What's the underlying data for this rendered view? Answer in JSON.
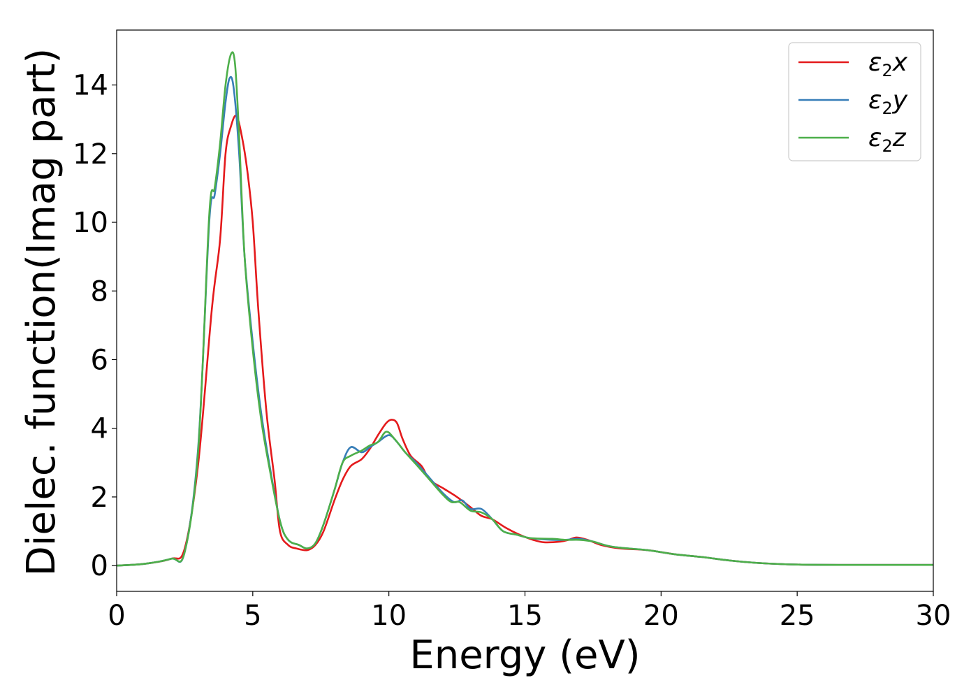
{
  "chart_data": {
    "type": "line",
    "title": "",
    "xlabel": "Energy (eV)",
    "ylabel": "Dielec. function(Imag part)",
    "xlim": [
      0,
      30
    ],
    "ylim": [
      -0.75,
      15.6
    ],
    "xticks": [
      0,
      5,
      10,
      15,
      20,
      25,
      30
    ],
    "xtick_labels": [
      "0",
      "5",
      "10",
      "15",
      "20",
      "25",
      "30"
    ],
    "yticks": [
      0,
      2,
      4,
      6,
      8,
      10,
      12,
      14
    ],
    "ytick_labels": [
      "0",
      "2",
      "4",
      "6",
      "8",
      "10",
      "12",
      "14"
    ],
    "grid": false,
    "legend_position": "top-right",
    "series": [
      {
        "name": "ε2x",
        "label_base": "ε",
        "label_sub": "2",
        "label_var": "x",
        "color": "#e41a1c",
        "points": [
          [
            0,
            0
          ],
          [
            1,
            0.05
          ],
          [
            2,
            0.2
          ],
          [
            2.5,
            0.5
          ],
          [
            3,
            3.0
          ],
          [
            3.5,
            7.5
          ],
          [
            3.8,
            9.5
          ],
          [
            4.0,
            12.0
          ],
          [
            4.2,
            12.8
          ],
          [
            4.4,
            13.1
          ],
          [
            4.6,
            12.5
          ],
          [
            4.8,
            11.5
          ],
          [
            5.0,
            10.0
          ],
          [
            5.2,
            7.5
          ],
          [
            5.5,
            4.5
          ],
          [
            5.8,
            2.5
          ],
          [
            6.0,
            1.0
          ],
          [
            6.3,
            0.6
          ],
          [
            6.6,
            0.5
          ],
          [
            7.0,
            0.45
          ],
          [
            7.3,
            0.6
          ],
          [
            7.6,
            1.0
          ],
          [
            8.0,
            1.9
          ],
          [
            8.3,
            2.5
          ],
          [
            8.6,
            2.9
          ],
          [
            9.0,
            3.1
          ],
          [
            9.3,
            3.4
          ],
          [
            9.6,
            3.8
          ],
          [
            9.9,
            4.15
          ],
          [
            10.1,
            4.25
          ],
          [
            10.3,
            4.15
          ],
          [
            10.5,
            3.7
          ],
          [
            10.8,
            3.2
          ],
          [
            11.2,
            2.9
          ],
          [
            11.5,
            2.5
          ],
          [
            12.0,
            2.25
          ],
          [
            12.5,
            2.0
          ],
          [
            13.0,
            1.7
          ],
          [
            13.4,
            1.45
          ],
          [
            13.8,
            1.35
          ],
          [
            14.3,
            1.1
          ],
          [
            14.8,
            0.9
          ],
          [
            15.3,
            0.75
          ],
          [
            15.7,
            0.68
          ],
          [
            16.3,
            0.7
          ],
          [
            16.6,
            0.75
          ],
          [
            16.9,
            0.82
          ],
          [
            17.3,
            0.75
          ],
          [
            17.8,
            0.6
          ],
          [
            18.5,
            0.5
          ],
          [
            19.5,
            0.45
          ],
          [
            20.5,
            0.33
          ],
          [
            21.5,
            0.25
          ],
          [
            22.5,
            0.15
          ],
          [
            23.5,
            0.08
          ],
          [
            25,
            0.03
          ],
          [
            27,
            0.02
          ],
          [
            30,
            0.02
          ]
        ]
      },
      {
        "name": "ε2y",
        "label_base": "ε",
        "label_sub": "2",
        "label_var": "y",
        "color": "#377eb8",
        "points": [
          [
            0,
            0
          ],
          [
            1,
            0.05
          ],
          [
            2,
            0.2
          ],
          [
            2.5,
            0.4
          ],
          [
            3,
            3.5
          ],
          [
            3.4,
            10.0
          ],
          [
            3.6,
            10.8
          ],
          [
            3.8,
            12.0
          ],
          [
            4.0,
            13.5
          ],
          [
            4.15,
            14.2
          ],
          [
            4.3,
            13.9
          ],
          [
            4.5,
            12.0
          ],
          [
            4.7,
            9.0
          ],
          [
            5.0,
            6.5
          ],
          [
            5.3,
            4.5
          ],
          [
            5.6,
            3.0
          ],
          [
            6.0,
            1.3
          ],
          [
            6.3,
            0.75
          ],
          [
            6.7,
            0.6
          ],
          [
            7.0,
            0.5
          ],
          [
            7.3,
            0.65
          ],
          [
            7.6,
            1.2
          ],
          [
            8.0,
            2.2
          ],
          [
            8.3,
            3.0
          ],
          [
            8.6,
            3.45
          ],
          [
            9.0,
            3.3
          ],
          [
            9.3,
            3.45
          ],
          [
            9.6,
            3.6
          ],
          [
            10.0,
            3.8
          ],
          [
            10.3,
            3.6
          ],
          [
            10.6,
            3.3
          ],
          [
            11.0,
            3.0
          ],
          [
            11.5,
            2.55
          ],
          [
            12.0,
            2.1
          ],
          [
            12.4,
            1.85
          ],
          [
            12.7,
            1.9
          ],
          [
            13.0,
            1.65
          ],
          [
            13.4,
            1.65
          ],
          [
            13.8,
            1.35
          ],
          [
            14.2,
            1.0
          ],
          [
            14.7,
            0.9
          ],
          [
            15.2,
            0.8
          ],
          [
            16.0,
            0.75
          ],
          [
            16.5,
            0.75
          ],
          [
            17.0,
            0.78
          ],
          [
            17.5,
            0.7
          ],
          [
            18.2,
            0.55
          ],
          [
            19.5,
            0.45
          ],
          [
            20.5,
            0.33
          ],
          [
            21.5,
            0.25
          ],
          [
            22.5,
            0.15
          ],
          [
            23.5,
            0.08
          ],
          [
            25,
            0.03
          ],
          [
            27,
            0.02
          ],
          [
            30,
            0.02
          ]
        ]
      },
      {
        "name": "ε2z",
        "label_base": "ε",
        "label_sub": "2",
        "label_var": "z",
        "color": "#4daf4a",
        "points": [
          [
            0,
            0
          ],
          [
            1,
            0.05
          ],
          [
            2,
            0.2
          ],
          [
            2.5,
            0.4
          ],
          [
            3,
            3.4
          ],
          [
            3.4,
            10.2
          ],
          [
            3.6,
            11.0
          ],
          [
            3.8,
            12.3
          ],
          [
            4.0,
            14.0
          ],
          [
            4.2,
            14.9
          ],
          [
            4.35,
            14.6
          ],
          [
            4.5,
            12.5
          ],
          [
            4.7,
            9.0
          ],
          [
            5.0,
            6.3
          ],
          [
            5.3,
            4.3
          ],
          [
            5.6,
            2.9
          ],
          [
            6.0,
            1.3
          ],
          [
            6.3,
            0.75
          ],
          [
            6.7,
            0.6
          ],
          [
            7.0,
            0.5
          ],
          [
            7.3,
            0.65
          ],
          [
            7.6,
            1.2
          ],
          [
            8.0,
            2.2
          ],
          [
            8.3,
            3.0
          ],
          [
            8.6,
            3.2
          ],
          [
            9.0,
            3.35
          ],
          [
            9.3,
            3.5
          ],
          [
            9.6,
            3.6
          ],
          [
            9.9,
            3.9
          ],
          [
            10.2,
            3.7
          ],
          [
            10.6,
            3.3
          ],
          [
            11.0,
            2.95
          ],
          [
            11.5,
            2.5
          ],
          [
            12.0,
            2.05
          ],
          [
            12.3,
            1.85
          ],
          [
            12.6,
            1.85
          ],
          [
            13.0,
            1.6
          ],
          [
            13.4,
            1.55
          ],
          [
            13.8,
            1.35
          ],
          [
            14.2,
            1.0
          ],
          [
            14.7,
            0.9
          ],
          [
            15.2,
            0.8
          ],
          [
            16.0,
            0.78
          ],
          [
            16.5,
            0.75
          ],
          [
            17.0,
            0.75
          ],
          [
            17.5,
            0.7
          ],
          [
            18.2,
            0.55
          ],
          [
            19.5,
            0.45
          ],
          [
            20.5,
            0.33
          ],
          [
            21.5,
            0.25
          ],
          [
            22.5,
            0.15
          ],
          [
            23.5,
            0.08
          ],
          [
            25,
            0.03
          ],
          [
            27,
            0.02
          ],
          [
            30,
            0.02
          ]
        ]
      }
    ]
  }
}
